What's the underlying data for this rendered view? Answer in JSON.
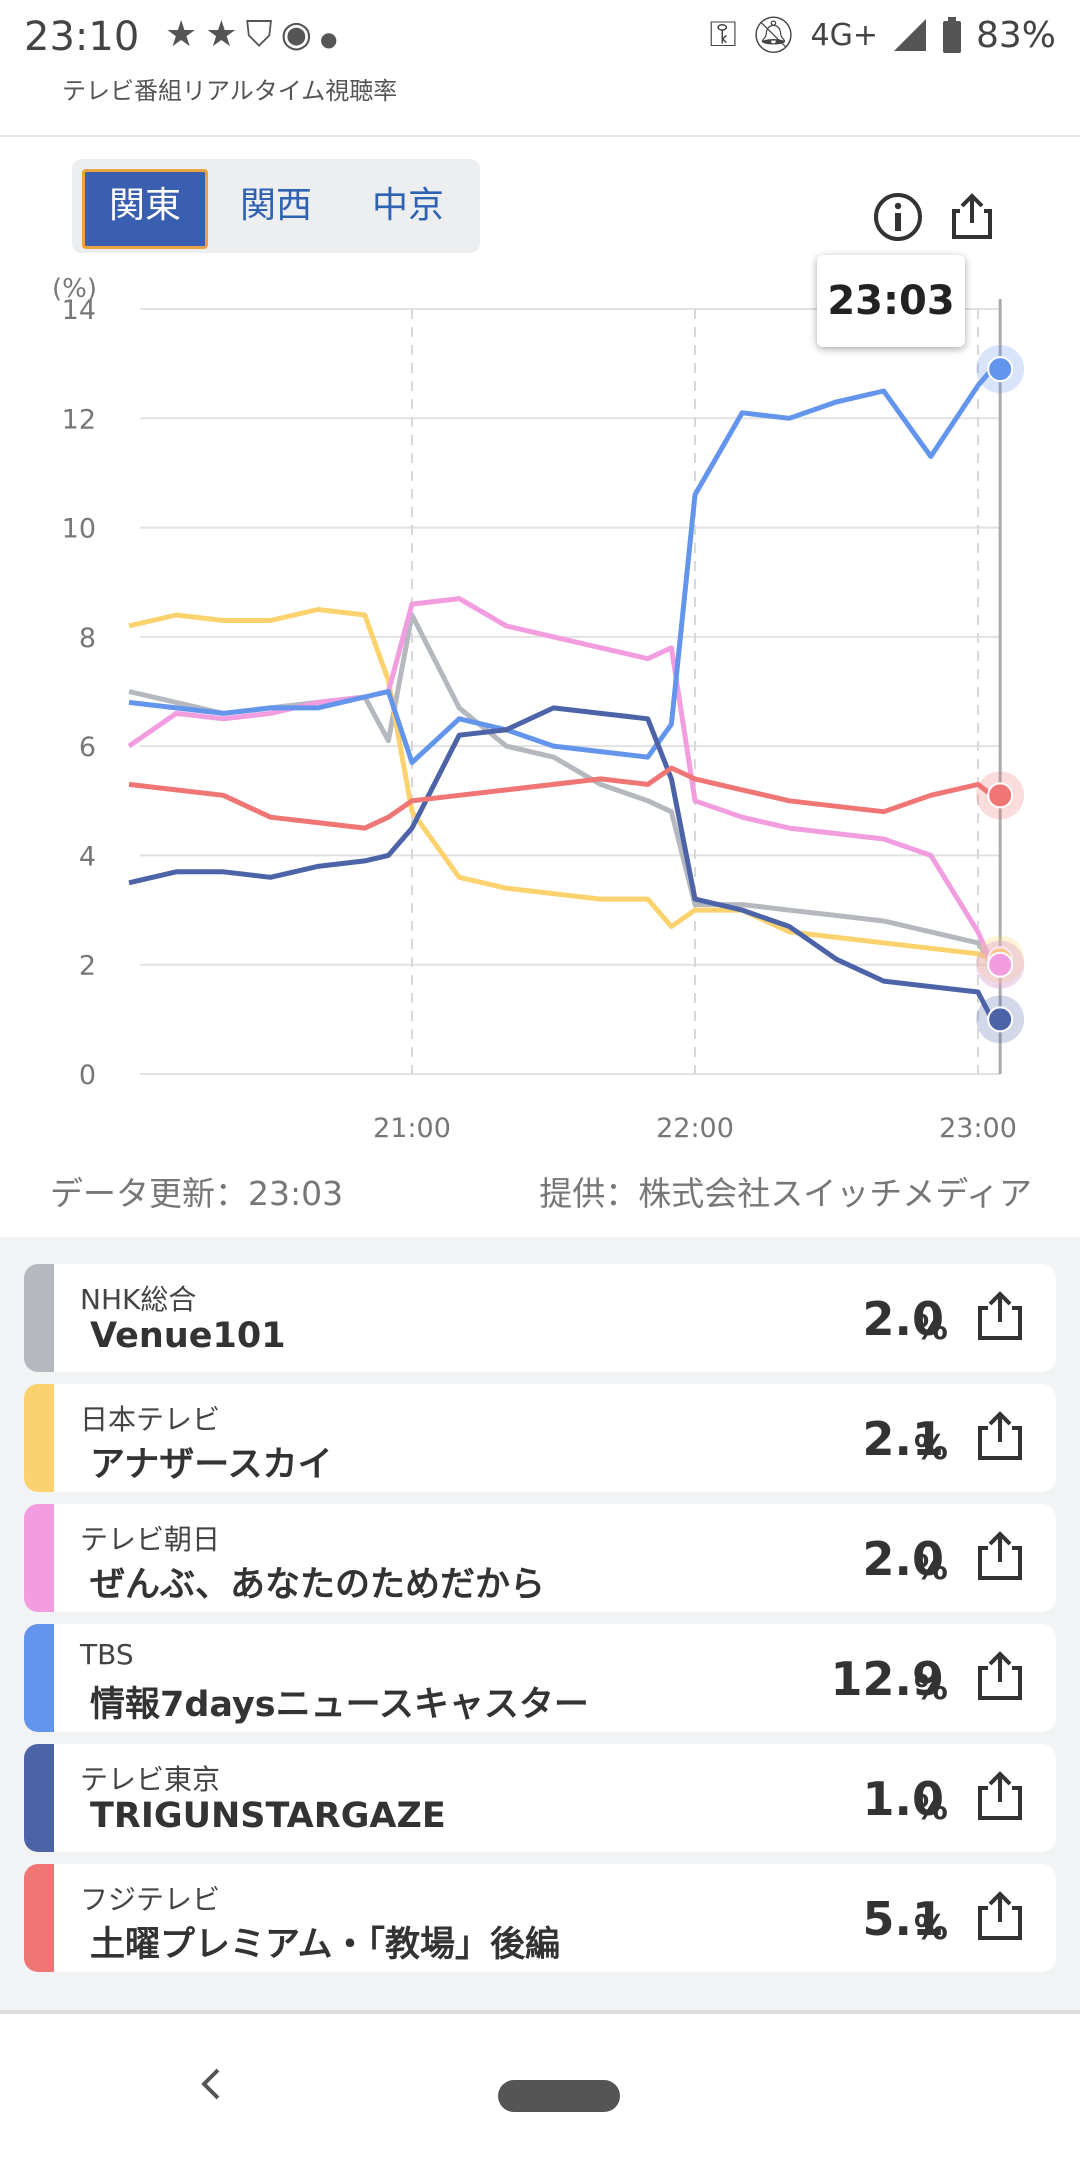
{
  "status_bar": {
    "time": "23:10",
    "left_icons": [
      "star-icon",
      "star-icon",
      "shield-icon",
      "assistant-icon",
      "dot-icon"
    ],
    "network": "4G+",
    "battery": "83%"
  },
  "app": {
    "title": "テレビ番組リアルタイム視聴率"
  },
  "region_tabs": [
    {
      "label": "関東",
      "active": true
    },
    {
      "label": "関西",
      "active": false
    },
    {
      "label": "中京",
      "active": false
    }
  ],
  "tooltip": {
    "time": "23:03"
  },
  "chart_data": {
    "type": "line",
    "ylabel": "(%)",
    "ylim": [
      0,
      14
    ],
    "yticks": [
      "0",
      "2",
      "4",
      "6",
      "8",
      "10",
      "12",
      "14"
    ],
    "xticks": [
      "21:00",
      "22:00",
      "23:00"
    ],
    "x": [
      "20:00",
      "20:10",
      "20:20",
      "20:30",
      "20:40",
      "20:50",
      "20:55",
      "21:00",
      "21:10",
      "21:20",
      "21:30",
      "21:40",
      "21:50",
      "21:55",
      "22:00",
      "22:10",
      "22:20",
      "22:30",
      "22:40",
      "22:50",
      "23:00",
      "23:03"
    ],
    "series": [
      {
        "station": "NHK総合",
        "color": "#b5b9bf",
        "values": [
          7.0,
          6.8,
          6.6,
          6.7,
          6.8,
          6.9,
          6.1,
          8.4,
          6.7,
          6.0,
          5.8,
          5.3,
          5.0,
          4.8,
          3.1,
          3.1,
          3.0,
          2.9,
          2.8,
          2.6,
          2.4,
          2.0
        ]
      },
      {
        "station": "日本テレビ",
        "color": "#fbd26d",
        "values": [
          8.2,
          8.4,
          8.3,
          8.3,
          8.5,
          8.4,
          7.2,
          4.8,
          3.6,
          3.4,
          3.3,
          3.2,
          3.2,
          2.7,
          3.0,
          3.0,
          2.6,
          2.5,
          2.4,
          2.3,
          2.2,
          2.1
        ]
      },
      {
        "station": "テレビ朝日",
        "color": "#f29de0",
        "values": [
          6.0,
          6.6,
          6.5,
          6.6,
          6.8,
          6.9,
          7.0,
          8.6,
          8.7,
          8.2,
          8.0,
          7.8,
          7.6,
          7.8,
          5.0,
          4.7,
          4.5,
          4.4,
          4.3,
          4.0,
          2.6,
          2.0
        ]
      },
      {
        "station": "TBS",
        "color": "#6495ed",
        "values": [
          6.8,
          6.7,
          6.6,
          6.7,
          6.7,
          6.9,
          7.0,
          5.7,
          6.5,
          6.3,
          6.0,
          5.9,
          5.8,
          6.4,
          10.6,
          12.1,
          12.0,
          12.3,
          12.5,
          11.3,
          12.6,
          12.9
        ]
      },
      {
        "station": "テレビ東京",
        "color": "#4d63a8",
        "values": [
          3.5,
          3.7,
          3.7,
          3.6,
          3.8,
          3.9,
          4.0,
          4.5,
          6.2,
          6.3,
          6.7,
          6.6,
          6.5,
          5.4,
          3.2,
          3.0,
          2.7,
          2.1,
          1.7,
          1.6,
          1.5,
          1.0
        ]
      },
      {
        "station": "フジテレビ",
        "color": "#f07575",
        "values": [
          5.3,
          5.2,
          5.1,
          4.7,
          4.6,
          4.5,
          4.7,
          5.0,
          5.1,
          5.2,
          5.3,
          5.4,
          5.3,
          5.6,
          5.4,
          5.2,
          5.0,
          4.9,
          4.8,
          5.1,
          5.3,
          5.1
        ]
      }
    ]
  },
  "data_updated": "データ更新：23:03",
  "provider": "提供：株式会社スイッチメディア",
  "programs": [
    {
      "station": "NHK総合",
      "title": "Venue101",
      "rating": "2.0",
      "unit": "%",
      "color": "#b5b9bf"
    },
    {
      "station": "日本テレビ",
      "title": "アナザースカイ",
      "rating": "2.1",
      "unit": "%",
      "color": "#fbd26d"
    },
    {
      "station": "テレビ朝日",
      "title": "ぜんぶ、あなたのためだから",
      "rating": "2.0",
      "unit": "%",
      "color": "#f29de0"
    },
    {
      "station": "TBS",
      "title": "情報7daysニュースキャスター",
      "rating": "12.9",
      "unit": "%",
      "color": "#6495ed"
    },
    {
      "station": "テレビ東京",
      "title": "TRIGUNSTARGAZE",
      "rating": "1.0",
      "unit": "%",
      "color": "#4d63a8"
    },
    {
      "station": "フジテレビ",
      "title": "土曜プレミアム・「教場」後編",
      "rating": "5.1",
      "unit": "%",
      "color": "#f07575"
    }
  ]
}
